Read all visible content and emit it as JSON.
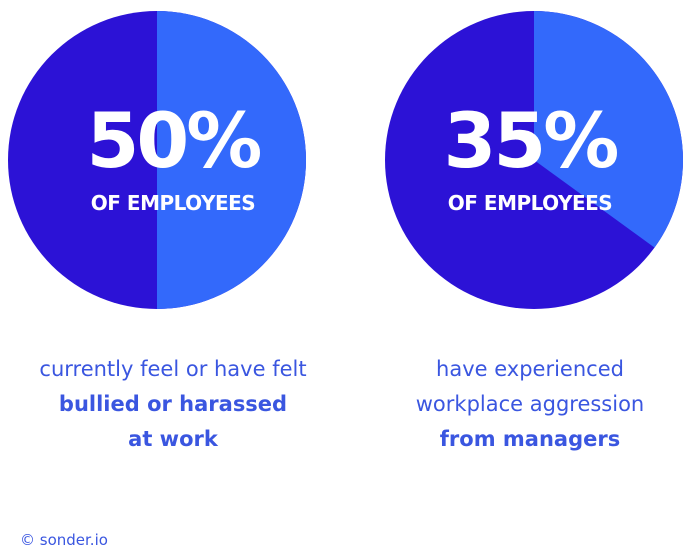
{
  "colors": {
    "dark": "#2c12d6",
    "light": "#3369fb",
    "text": "#3a56e0",
    "white": "#ffffff"
  },
  "chart_data": [
    {
      "type": "pie",
      "values": [
        50,
        50
      ],
      "highlight_percent": 50,
      "big_label": "50%",
      "sub_label": "OF EMPLOYEES",
      "caption": [
        "currently feel or have felt",
        "bullied or harassed",
        "at work"
      ],
      "caption_bold": [
        false,
        true,
        true
      ]
    },
    {
      "type": "pie",
      "values": [
        35,
        65
      ],
      "highlight_percent": 35,
      "big_label": "35%",
      "sub_label": "OF EMPLOYEES",
      "caption": [
        "have experienced",
        "workplace aggression",
        "from managers"
      ],
      "caption_bold": [
        false,
        false,
        true
      ]
    }
  ],
  "footer": "© sonder.io"
}
